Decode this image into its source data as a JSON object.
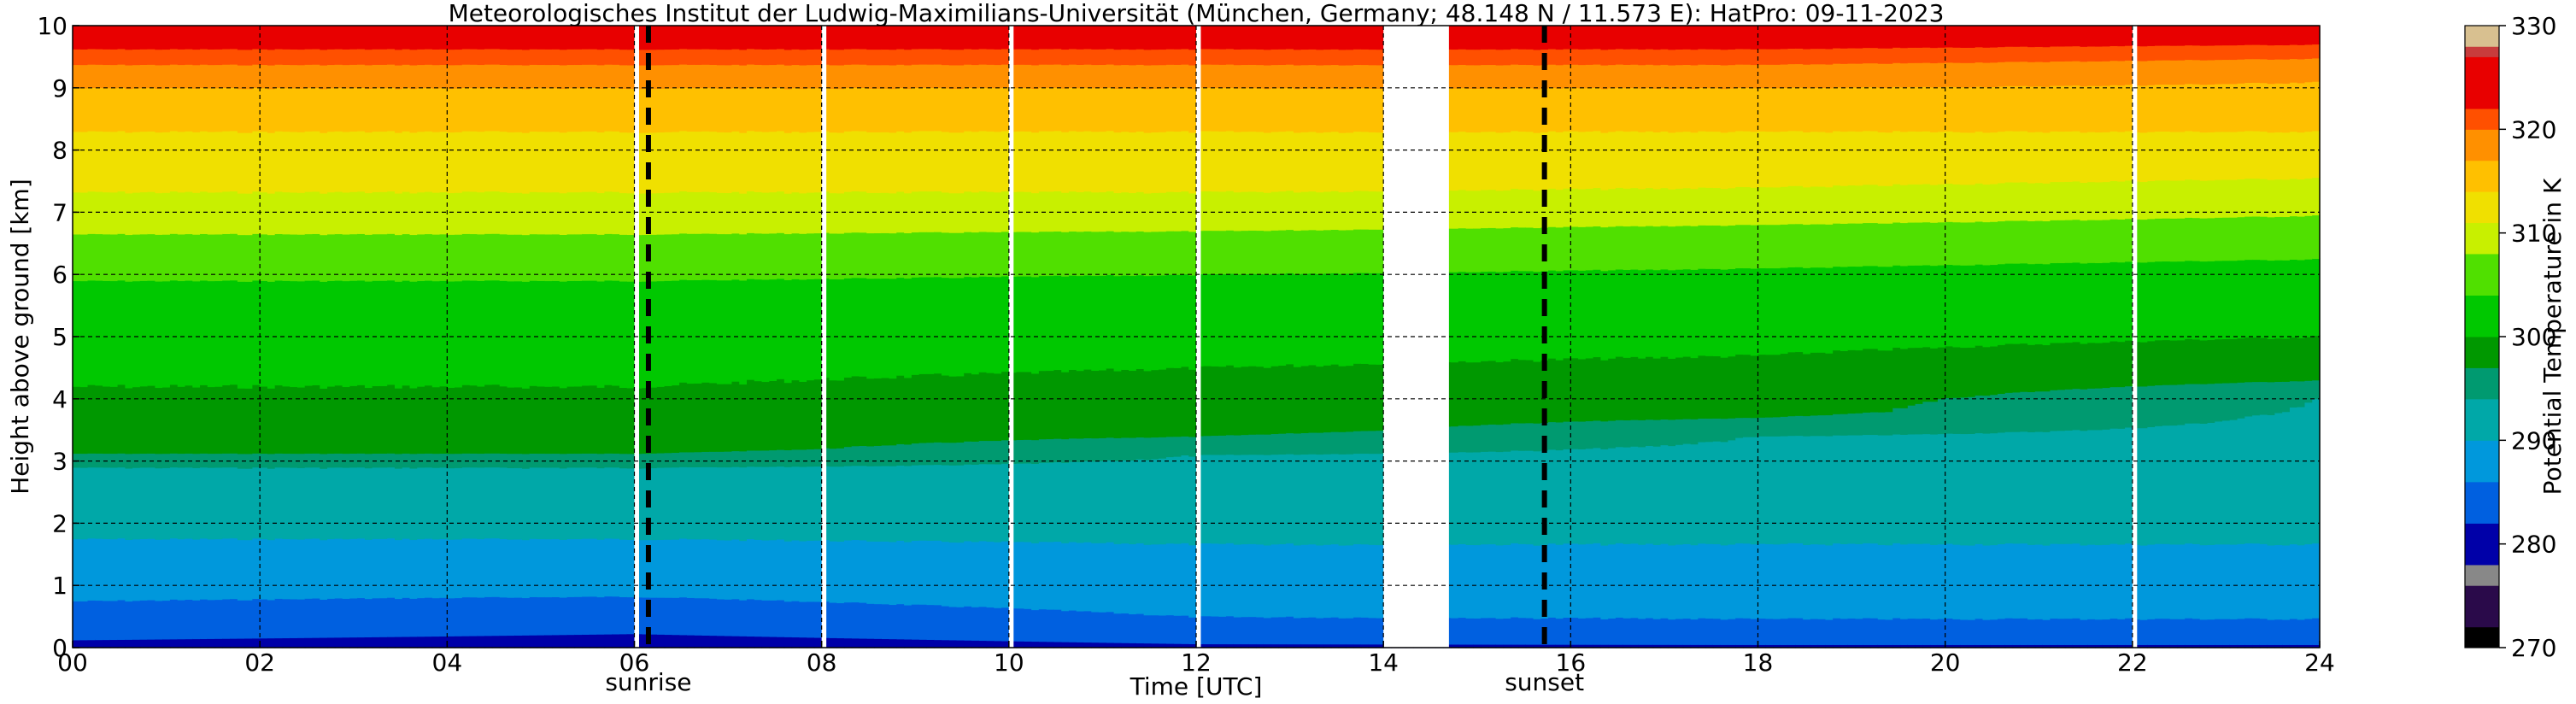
{
  "chart_data": {
    "type": "heatmap",
    "title": "Meteorologisches Institut der Ludwig-Maximilians-Universität (München, Germany; 48.148 N / 11.573 E):    HatPro: 09-11-2023",
    "xlabel": "Time [UTC]",
    "ylabel": "Height above ground [km]",
    "colorbar_label": "Potential Temperature in K",
    "xlim": [
      0,
      24
    ],
    "ylim": [
      0,
      10
    ],
    "x_ticks": [
      0,
      2,
      4,
      6,
      8,
      10,
      12,
      14,
      16,
      18,
      20,
      22,
      24
    ],
    "x_tick_labels": [
      "00",
      "02",
      "04",
      "06",
      "08",
      "10",
      "12",
      "14",
      "16",
      "18",
      "20",
      "22",
      "24"
    ],
    "y_ticks": [
      0,
      1,
      2,
      3,
      4,
      5,
      6,
      7,
      8,
      9,
      10
    ],
    "y_tick_labels": [
      "0",
      "1",
      "2",
      "3",
      "4",
      "5",
      "6",
      "7",
      "8",
      "9",
      "10"
    ],
    "grid": true,
    "colorbar": {
      "range": [
        270,
        330
      ],
      "ticks": [
        270,
        280,
        290,
        300,
        310,
        320,
        330
      ],
      "tick_labels": [
        "270",
        "280",
        "290",
        "300",
        "310",
        "320",
        "330"
      ],
      "bands": [
        {
          "from": 270,
          "to": 272,
          "color": "#000000"
        },
        {
          "from": 272,
          "to": 276,
          "color": "#2a0a4a"
        },
        {
          "from": 276,
          "to": 278,
          "color": "#888888"
        },
        {
          "from": 278,
          "to": 282,
          "color": "#0000a8"
        },
        {
          "from": 282,
          "to": 286,
          "color": "#0060e0"
        },
        {
          "from": 286,
          "to": 290,
          "color": "#0098dc"
        },
        {
          "from": 290,
          "to": 294,
          "color": "#00a8a8"
        },
        {
          "from": 294,
          "to": 297,
          "color": "#009a70"
        },
        {
          "from": 297,
          "to": 300,
          "color": "#009800"
        },
        {
          "from": 300,
          "to": 304,
          "color": "#00c800"
        },
        {
          "from": 304,
          "to": 308,
          "color": "#50e000"
        },
        {
          "from": 308,
          "to": 311,
          "color": "#c8f000"
        },
        {
          "from": 311,
          "to": 314,
          "color": "#f0e000"
        },
        {
          "from": 314,
          "to": 317,
          "color": "#ffc000"
        },
        {
          "from": 317,
          "to": 320,
          "color": "#ff9000"
        },
        {
          "from": 320,
          "to": 322,
          "color": "#ff5000"
        },
        {
          "from": 322,
          "to": 327,
          "color": "#e80000"
        },
        {
          "from": 327,
          "to": 328,
          "color": "#c83c3c"
        },
        {
          "from": 328,
          "to": 330,
          "color": "#d8c090"
        }
      ]
    },
    "annotations": [
      {
        "label": "sunrise",
        "x": 6.15
      },
      {
        "label": "sunset",
        "x": 15.72
      }
    ],
    "missing_data_intervals": [
      [
        6.0,
        6.05
      ],
      [
        8.0,
        8.05
      ],
      [
        10.0,
        10.05
      ],
      [
        12.0,
        12.05
      ],
      [
        14.0,
        14.7
      ],
      [
        22.0,
        22.05
      ]
    ],
    "profiles": [
      {
        "time": 0,
        "levels": [
          [
            0,
            280
          ],
          [
            0.25,
            284
          ],
          [
            1,
            287
          ],
          [
            2,
            291
          ],
          [
            2.9,
            294
          ],
          [
            3.2,
            298
          ],
          [
            4.2,
            300
          ],
          [
            5.5,
            302
          ],
          [
            6.3,
            306
          ],
          [
            7.0,
            310
          ],
          [
            8.3,
            314
          ],
          [
            9.0,
            317
          ],
          [
            9.5,
            321
          ],
          [
            10,
            325
          ]
        ]
      },
      {
        "time": 6,
        "levels": [
          [
            0,
            279
          ],
          [
            0.3,
            283
          ],
          [
            1,
            287
          ],
          [
            2,
            291
          ],
          [
            2.9,
            294
          ],
          [
            3.2,
            298
          ],
          [
            4.2,
            300
          ],
          [
            5.5,
            302
          ],
          [
            6.3,
            306
          ],
          [
            7.0,
            310
          ],
          [
            8.3,
            314
          ],
          [
            9.0,
            317
          ],
          [
            9.5,
            321
          ],
          [
            10,
            325
          ]
        ]
      },
      {
        "time": 12,
        "levels": [
          [
            0,
            281
          ],
          [
            0.25,
            285
          ],
          [
            1,
            288
          ],
          [
            2,
            291
          ],
          [
            3.1,
            294
          ],
          [
            3.5,
            298
          ],
          [
            4.5,
            300
          ],
          [
            5.6,
            302
          ],
          [
            6.4,
            306
          ],
          [
            7.0,
            310
          ],
          [
            8.3,
            314
          ],
          [
            9.0,
            317
          ],
          [
            9.5,
            321
          ],
          [
            10,
            325
          ]
        ]
      },
      {
        "time": 18,
        "levels": [
          [
            0,
            281
          ],
          [
            0.2,
            285
          ],
          [
            1,
            288
          ],
          [
            2,
            291
          ],
          [
            3.4,
            294
          ],
          [
            3.8,
            298
          ],
          [
            4.7,
            300
          ],
          [
            5.7,
            302
          ],
          [
            6.5,
            306
          ],
          [
            7.1,
            310
          ],
          [
            8.3,
            314
          ],
          [
            9.0,
            317
          ],
          [
            9.5,
            321
          ],
          [
            10,
            325
          ]
        ]
      },
      {
        "time": 24,
        "levels": [
          [
            0,
            281
          ],
          [
            0.2,
            285
          ],
          [
            1,
            288
          ],
          [
            2,
            291
          ],
          [
            4.0,
            294
          ],
          [
            4.4,
            298
          ],
          [
            5.0,
            300
          ],
          [
            5.9,
            302
          ],
          [
            6.6,
            306
          ],
          [
            7.3,
            310
          ],
          [
            8.3,
            314
          ],
          [
            9.1,
            317
          ],
          [
            9.6,
            321
          ],
          [
            10,
            325
          ]
        ]
      }
    ]
  }
}
